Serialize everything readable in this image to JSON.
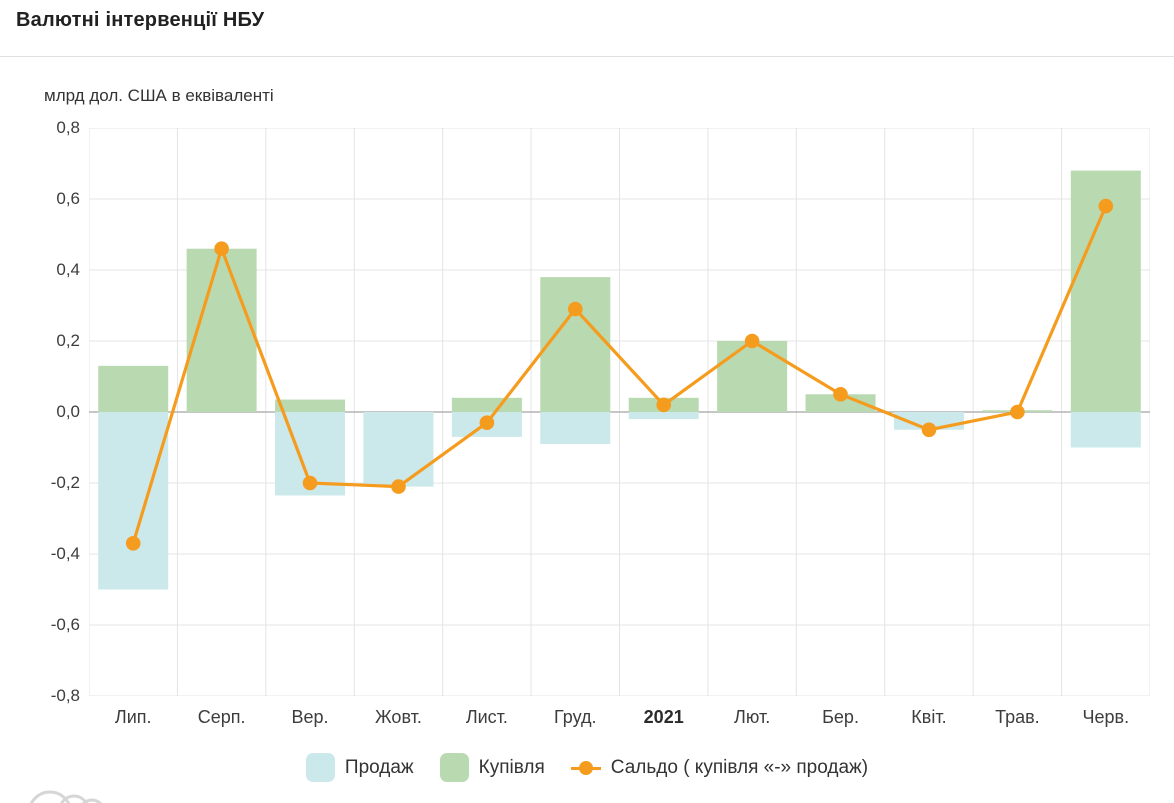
{
  "page": {
    "title": "Валютні інтервенції НБУ",
    "subtitle": "млрд дол. США в еквіваленті"
  },
  "legend": {
    "sale": "Продаж",
    "purchase": "Купівля",
    "balance": "Сальдо ( купівля «-» продаж)"
  },
  "colors": {
    "sale": "#cbe8eb",
    "purchase": "#b9dab1",
    "balance": "#f59c1e",
    "grid": "#e4e4e4",
    "zero_line": "#b3b3b3",
    "watermark": "#d6d6d6"
  },
  "chart_data": {
    "type": "bar",
    "subtype": "combo-bar-line",
    "title": "Валютні інтервенції НБУ",
    "ylabel": "млрд дол. США в еквіваленті",
    "xlabel": "",
    "grid": true,
    "legend_position": "bottom",
    "categories": [
      "Лип.",
      "Серп.",
      "Вер.",
      "Жовт.",
      "Лист.",
      "Груд.",
      "2021",
      "Лют.",
      "Бер.",
      "Квіт.",
      "Трав.",
      "Черв."
    ],
    "bold_tick": "2021",
    "ylim": [
      -0.8,
      0.8
    ],
    "yticks": [
      0.8,
      0.6,
      0.4,
      0.2,
      0,
      -0.2,
      -0.4,
      -0.6,
      -0.8
    ],
    "ytick_labels": [
      "0,8",
      "0,6",
      "0,4",
      "0,2",
      "0,0",
      "-0,2",
      "-0,4",
      "-0,6",
      "-0,8"
    ],
    "series": [
      {
        "name": "Продаж",
        "type": "bar",
        "color_key": "sale",
        "values": [
          -0.5,
          0,
          -0.235,
          -0.21,
          -0.07,
          -0.09,
          -0.02,
          0,
          0,
          -0.05,
          0,
          -0.1
        ]
      },
      {
        "name": "Купівля",
        "type": "bar",
        "color_key": "purchase",
        "values": [
          0.13,
          0.46,
          0.035,
          0,
          0.04,
          0.38,
          0.04,
          0.2,
          0.05,
          0,
          0.005,
          0.68
        ]
      },
      {
        "name": "Сальдо ( купівля «-» продаж)",
        "type": "line",
        "color_key": "balance",
        "values": [
          -0.37,
          0.46,
          -0.2,
          -0.21,
          -0.03,
          0.29,
          0.02,
          0.2,
          0.05,
          -0.05,
          0.0,
          0.58
        ]
      }
    ]
  }
}
